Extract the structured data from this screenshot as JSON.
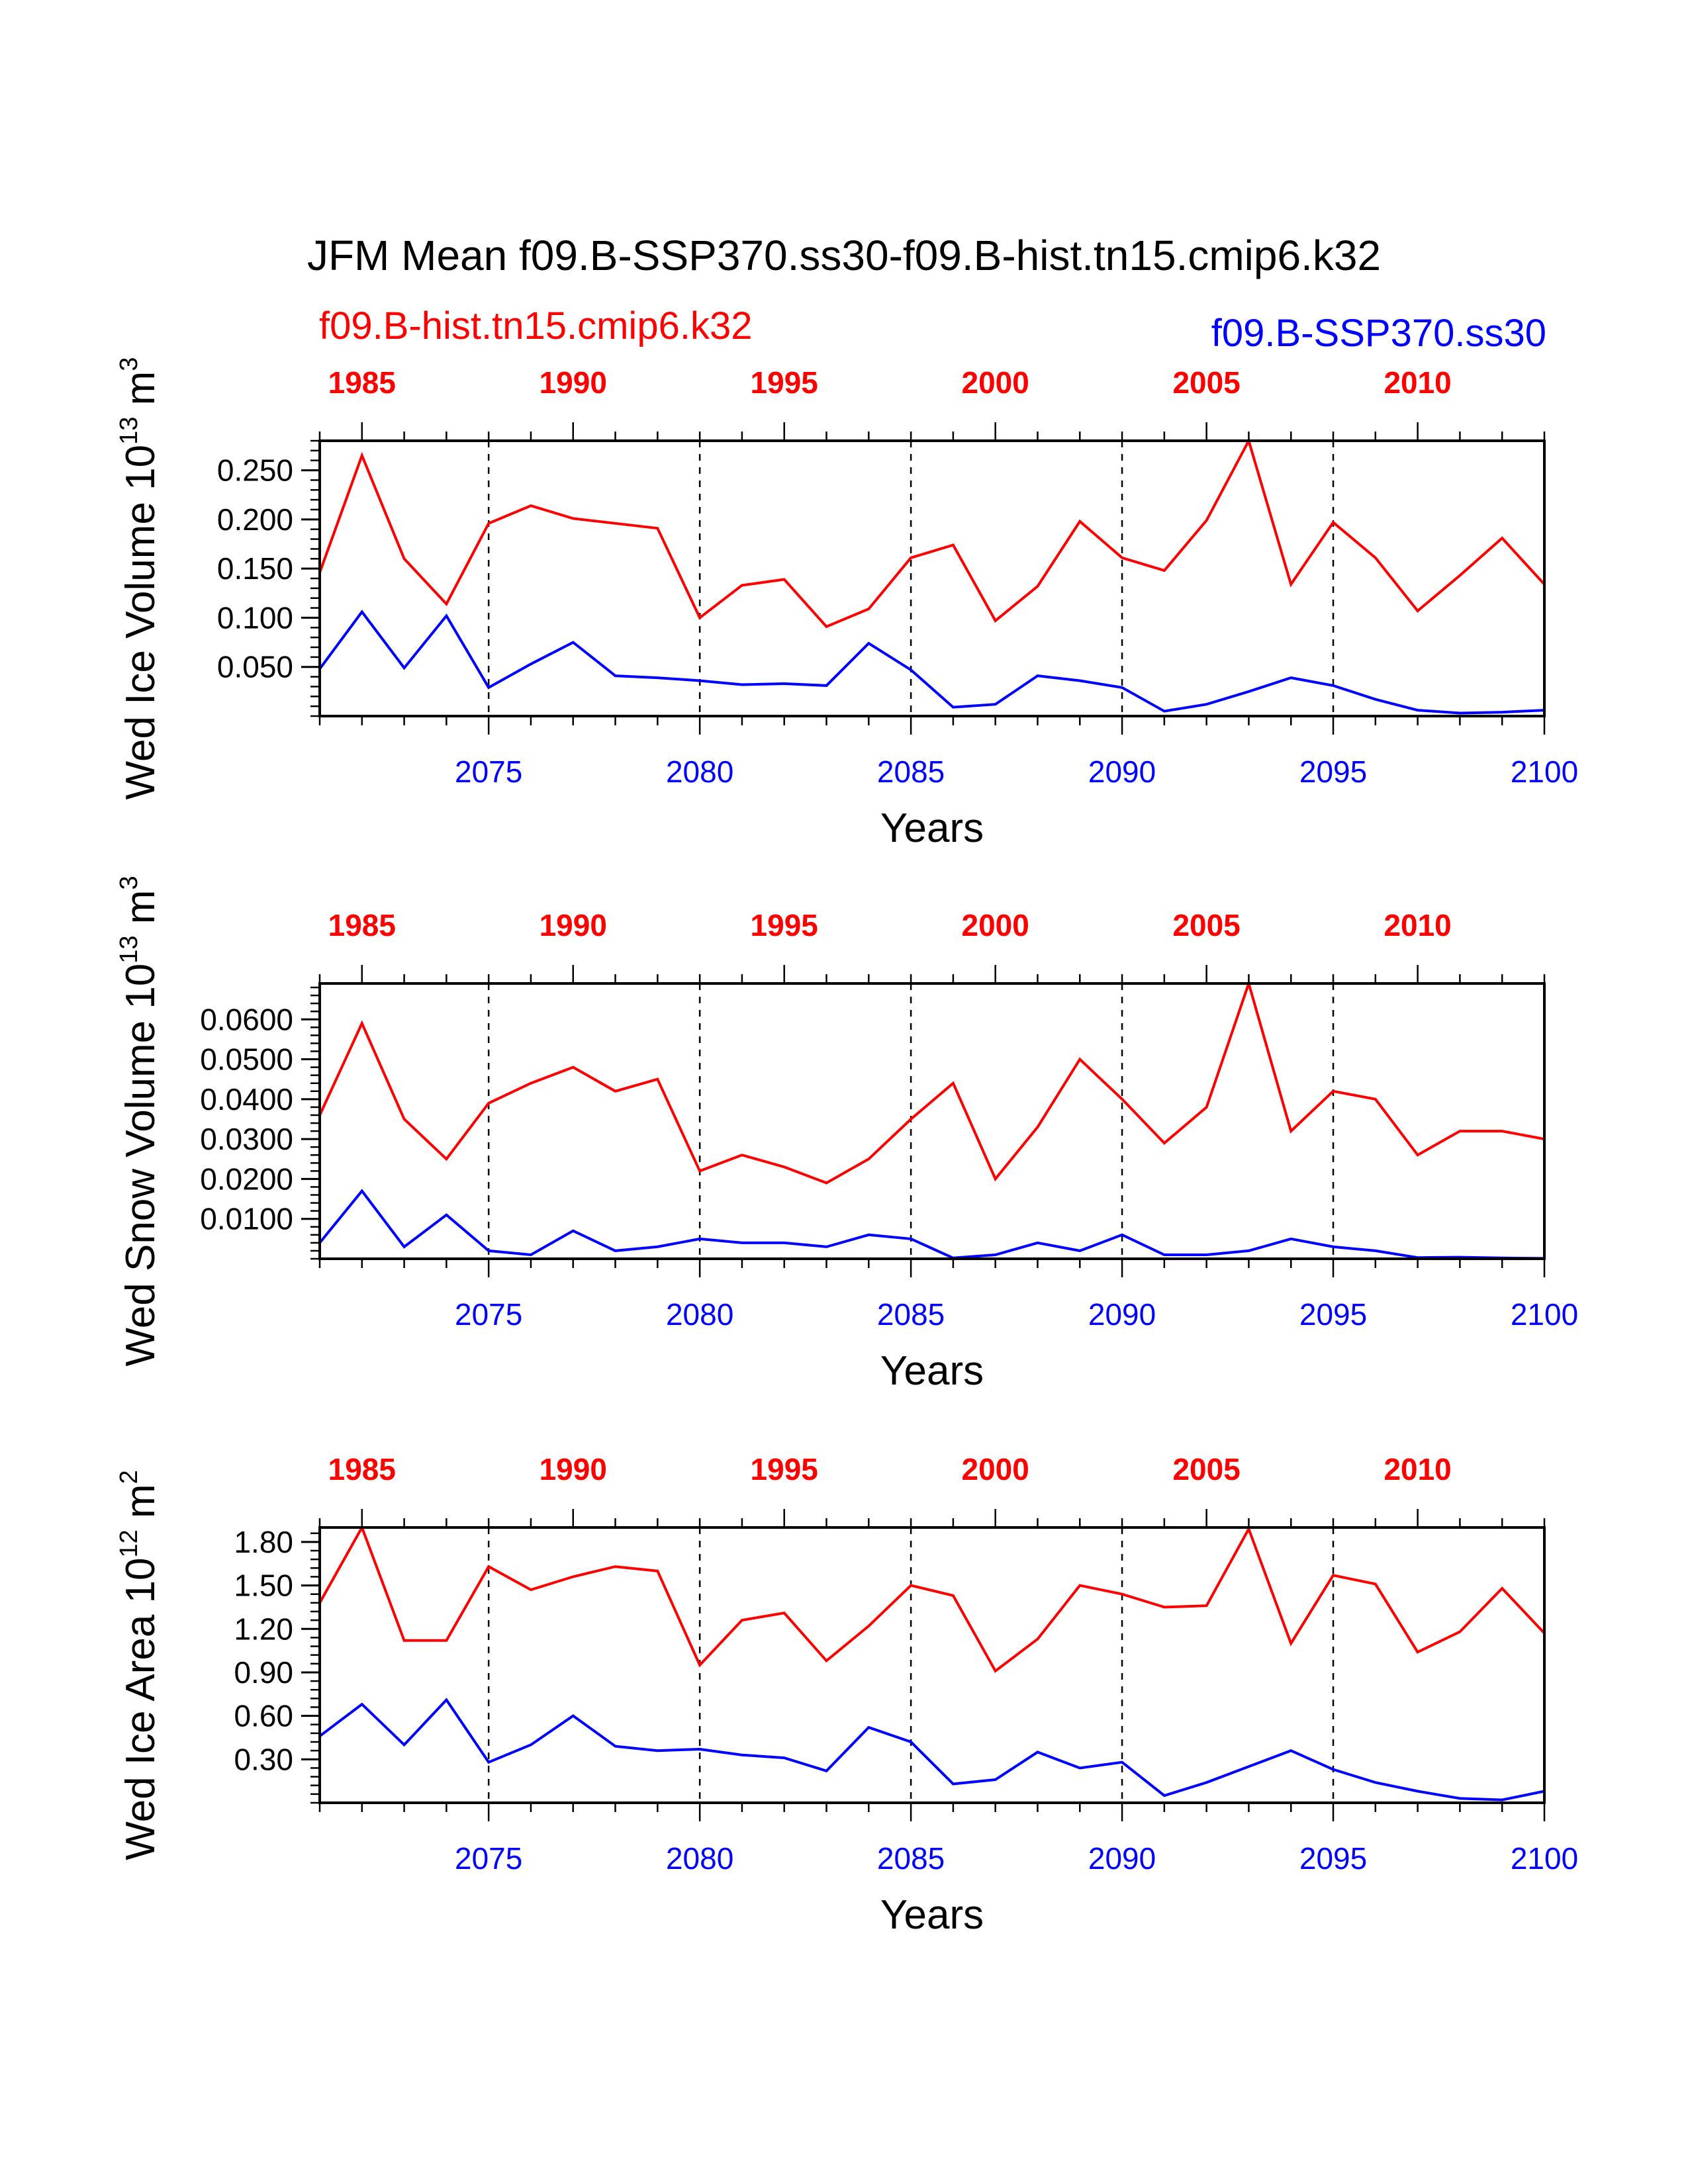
{
  "title": "JFM Mean f09.B-SSP370.ss30-f09.B-hist.tn15.cmip6.k32",
  "legend": {
    "left": "f09.B-hist.tn15.cmip6.k32",
    "right": "f09.B-SSP370.ss30"
  },
  "colors": {
    "hist": "#ff0000",
    "ssp": "#0000ff",
    "axis": "#000000"
  },
  "chart_data": [
    {
      "type": "line",
      "ylabel": "Wed Ice Volume 10",
      "ylabel_exp": "13",
      "ylabel_unit": " m",
      "ylabel_unit_exp": "3",
      "xlabel": "Years",
      "ylim": [
        0.0,
        0.28
      ],
      "y_ticks": [
        0.05,
        0.1,
        0.15,
        0.2,
        0.25
      ],
      "y_tick_labels": [
        "0.050",
        "0.100",
        "0.150",
        "0.200",
        "0.250"
      ],
      "y_minor_step": 0.01,
      "x_top_ticks": [
        1985,
        1990,
        1995,
        2000,
        2005,
        2010
      ],
      "x_bottom_ticks": [
        2075,
        2080,
        2085,
        2090,
        2095,
        2100
      ],
      "series": [
        {
          "name": "f09.B-hist.tn15.cmip6.k32",
          "x": [
            1984,
            1985,
            1986,
            1987,
            1988,
            1989,
            1990,
            1991,
            1992,
            1993,
            1994,
            1995,
            1996,
            1997,
            1998,
            1999,
            2000,
            2001,
            2002,
            2003,
            2004,
            2005,
            2006,
            2007,
            2008,
            2009,
            2010,
            2011,
            2012,
            2013
          ],
          "values": [
            0.146,
            0.265,
            0.16,
            0.114,
            0.196,
            0.214,
            0.201,
            0.196,
            0.191,
            0.1,
            0.133,
            0.139,
            0.091,
            0.109,
            0.161,
            0.174,
            0.097,
            0.132,
            0.198,
            0.161,
            0.148,
            0.199,
            0.28,
            0.134,
            0.197,
            0.161,
            0.107,
            0.143,
            0.181,
            0.134
          ]
        },
        {
          "name": "f09.B-SSP370.ss30",
          "x": [
            2071,
            2072,
            2073,
            2074,
            2075,
            2076,
            2077,
            2078,
            2079,
            2080,
            2081,
            2082,
            2083,
            2084,
            2085,
            2086,
            2087,
            2088,
            2089,
            2090,
            2091,
            2092,
            2093,
            2094,
            2095,
            2096,
            2097,
            2098,
            2099,
            2100
          ],
          "values": [
            0.048,
            0.106,
            0.049,
            0.102,
            0.029,
            0.053,
            0.075,
            0.041,
            0.039,
            0.036,
            0.032,
            0.033,
            0.031,
            0.074,
            0.047,
            0.009,
            0.012,
            0.041,
            0.036,
            0.029,
            0.005,
            0.012,
            0.025,
            0.039,
            0.031,
            0.017,
            0.006,
            0.003,
            0.004,
            0.006
          ]
        }
      ]
    },
    {
      "type": "line",
      "ylabel": "Wed Snow Volume 10",
      "ylabel_exp": "13",
      "ylabel_unit": " m",
      "ylabel_unit_exp": "3",
      "xlabel": "Years",
      "ylim": [
        0.0,
        0.069
      ],
      "y_ticks": [
        0.01,
        0.02,
        0.03,
        0.04,
        0.05,
        0.06
      ],
      "y_tick_labels": [
        "0.0100",
        "0.0200",
        "0.0300",
        "0.0400",
        "0.0500",
        "0.0600"
      ],
      "y_minor_step": 0.002,
      "x_top_ticks": [
        1985,
        1990,
        1995,
        2000,
        2005,
        2010
      ],
      "x_bottom_ticks": [
        2075,
        2080,
        2085,
        2090,
        2095,
        2100
      ],
      "series": [
        {
          "name": "f09.B-hist.tn15.cmip6.k32",
          "x": [
            1984,
            1985,
            1986,
            1987,
            1988,
            1989,
            1990,
            1991,
            1992,
            1993,
            1994,
            1995,
            1996,
            1997,
            1998,
            1999,
            2000,
            2001,
            2002,
            2003,
            2004,
            2005,
            2006,
            2007,
            2008,
            2009,
            2010,
            2011,
            2012,
            2013
          ],
          "values": [
            0.036,
            0.059,
            0.035,
            0.025,
            0.039,
            0.044,
            0.048,
            0.042,
            0.045,
            0.022,
            0.026,
            0.023,
            0.019,
            0.025,
            0.035,
            0.044,
            0.02,
            0.033,
            0.05,
            0.04,
            0.029,
            0.038,
            0.069,
            0.032,
            0.042,
            0.04,
            0.026,
            0.032,
            0.032,
            0.03
          ]
        },
        {
          "name": "f09.B-SSP370.ss30",
          "x": [
            2071,
            2072,
            2073,
            2074,
            2075,
            2076,
            2077,
            2078,
            2079,
            2080,
            2081,
            2082,
            2083,
            2084,
            2085,
            2086,
            2087,
            2088,
            2089,
            2090,
            2091,
            2092,
            2093,
            2094,
            2095,
            2096,
            2097,
            2098,
            2099,
            2100
          ],
          "values": [
            0.004,
            0.017,
            0.003,
            0.011,
            0.002,
            0.001,
            0.007,
            0.002,
            0.003,
            0.005,
            0.004,
            0.004,
            0.003,
            0.006,
            0.005,
            0.0002,
            0.001,
            0.004,
            0.002,
            0.006,
            0.001,
            0.001,
            0.002,
            0.005,
            0.003,
            0.002,
            0.0003,
            0.0004,
            0.0002,
            0.0001
          ]
        }
      ]
    },
    {
      "type": "line",
      "ylabel": "Wed Ice Area 10",
      "ylabel_exp": "12",
      "ylabel_unit": " m",
      "ylabel_unit_exp": "2",
      "xlabel": "Years",
      "ylim": [
        0.0,
        1.9
      ],
      "y_ticks": [
        0.3,
        0.6,
        0.9,
        1.2,
        1.5,
        1.8
      ],
      "y_tick_labels": [
        "0.30",
        "0.60",
        "0.90",
        "1.20",
        "1.50",
        "1.80"
      ],
      "y_minor_step": 0.06,
      "x_top_ticks": [
        1985,
        1990,
        1995,
        2000,
        2005,
        2010
      ],
      "x_bottom_ticks": [
        2075,
        2080,
        2085,
        2090,
        2095,
        2100
      ],
      "series": [
        {
          "name": "f09.B-hist.tn15.cmip6.k32",
          "x": [
            1984,
            1985,
            1986,
            1987,
            1988,
            1989,
            1990,
            1991,
            1992,
            1993,
            1994,
            1995,
            1996,
            1997,
            1998,
            1999,
            2000,
            2001,
            2002,
            2003,
            2004,
            2005,
            2006,
            2007,
            2008,
            2009,
            2010,
            2011,
            2012,
            2013
          ],
          "values": [
            1.38,
            1.9,
            1.12,
            1.12,
            1.63,
            1.47,
            1.56,
            1.63,
            1.6,
            0.95,
            1.26,
            1.31,
            0.98,
            1.22,
            1.5,
            1.43,
            0.91,
            1.13,
            1.5,
            1.44,
            1.35,
            1.36,
            1.89,
            1.1,
            1.57,
            1.51,
            1.04,
            1.18,
            1.48,
            1.17
          ]
        },
        {
          "name": "f09.B-SSP370.ss30",
          "x": [
            2071,
            2072,
            2073,
            2074,
            2075,
            2076,
            2077,
            2078,
            2079,
            2080,
            2081,
            2082,
            2083,
            2084,
            2085,
            2086,
            2087,
            2088,
            2089,
            2090,
            2091,
            2092,
            2093,
            2094,
            2095,
            2096,
            2097,
            2098,
            2099,
            2100
          ],
          "values": [
            0.46,
            0.68,
            0.4,
            0.71,
            0.28,
            0.4,
            0.6,
            0.39,
            0.36,
            0.37,
            0.33,
            0.31,
            0.22,
            0.52,
            0.42,
            0.13,
            0.16,
            0.35,
            0.24,
            0.28,
            0.05,
            0.14,
            0.25,
            0.36,
            0.23,
            0.14,
            0.08,
            0.03,
            0.02,
            0.08
          ]
        }
      ]
    }
  ]
}
